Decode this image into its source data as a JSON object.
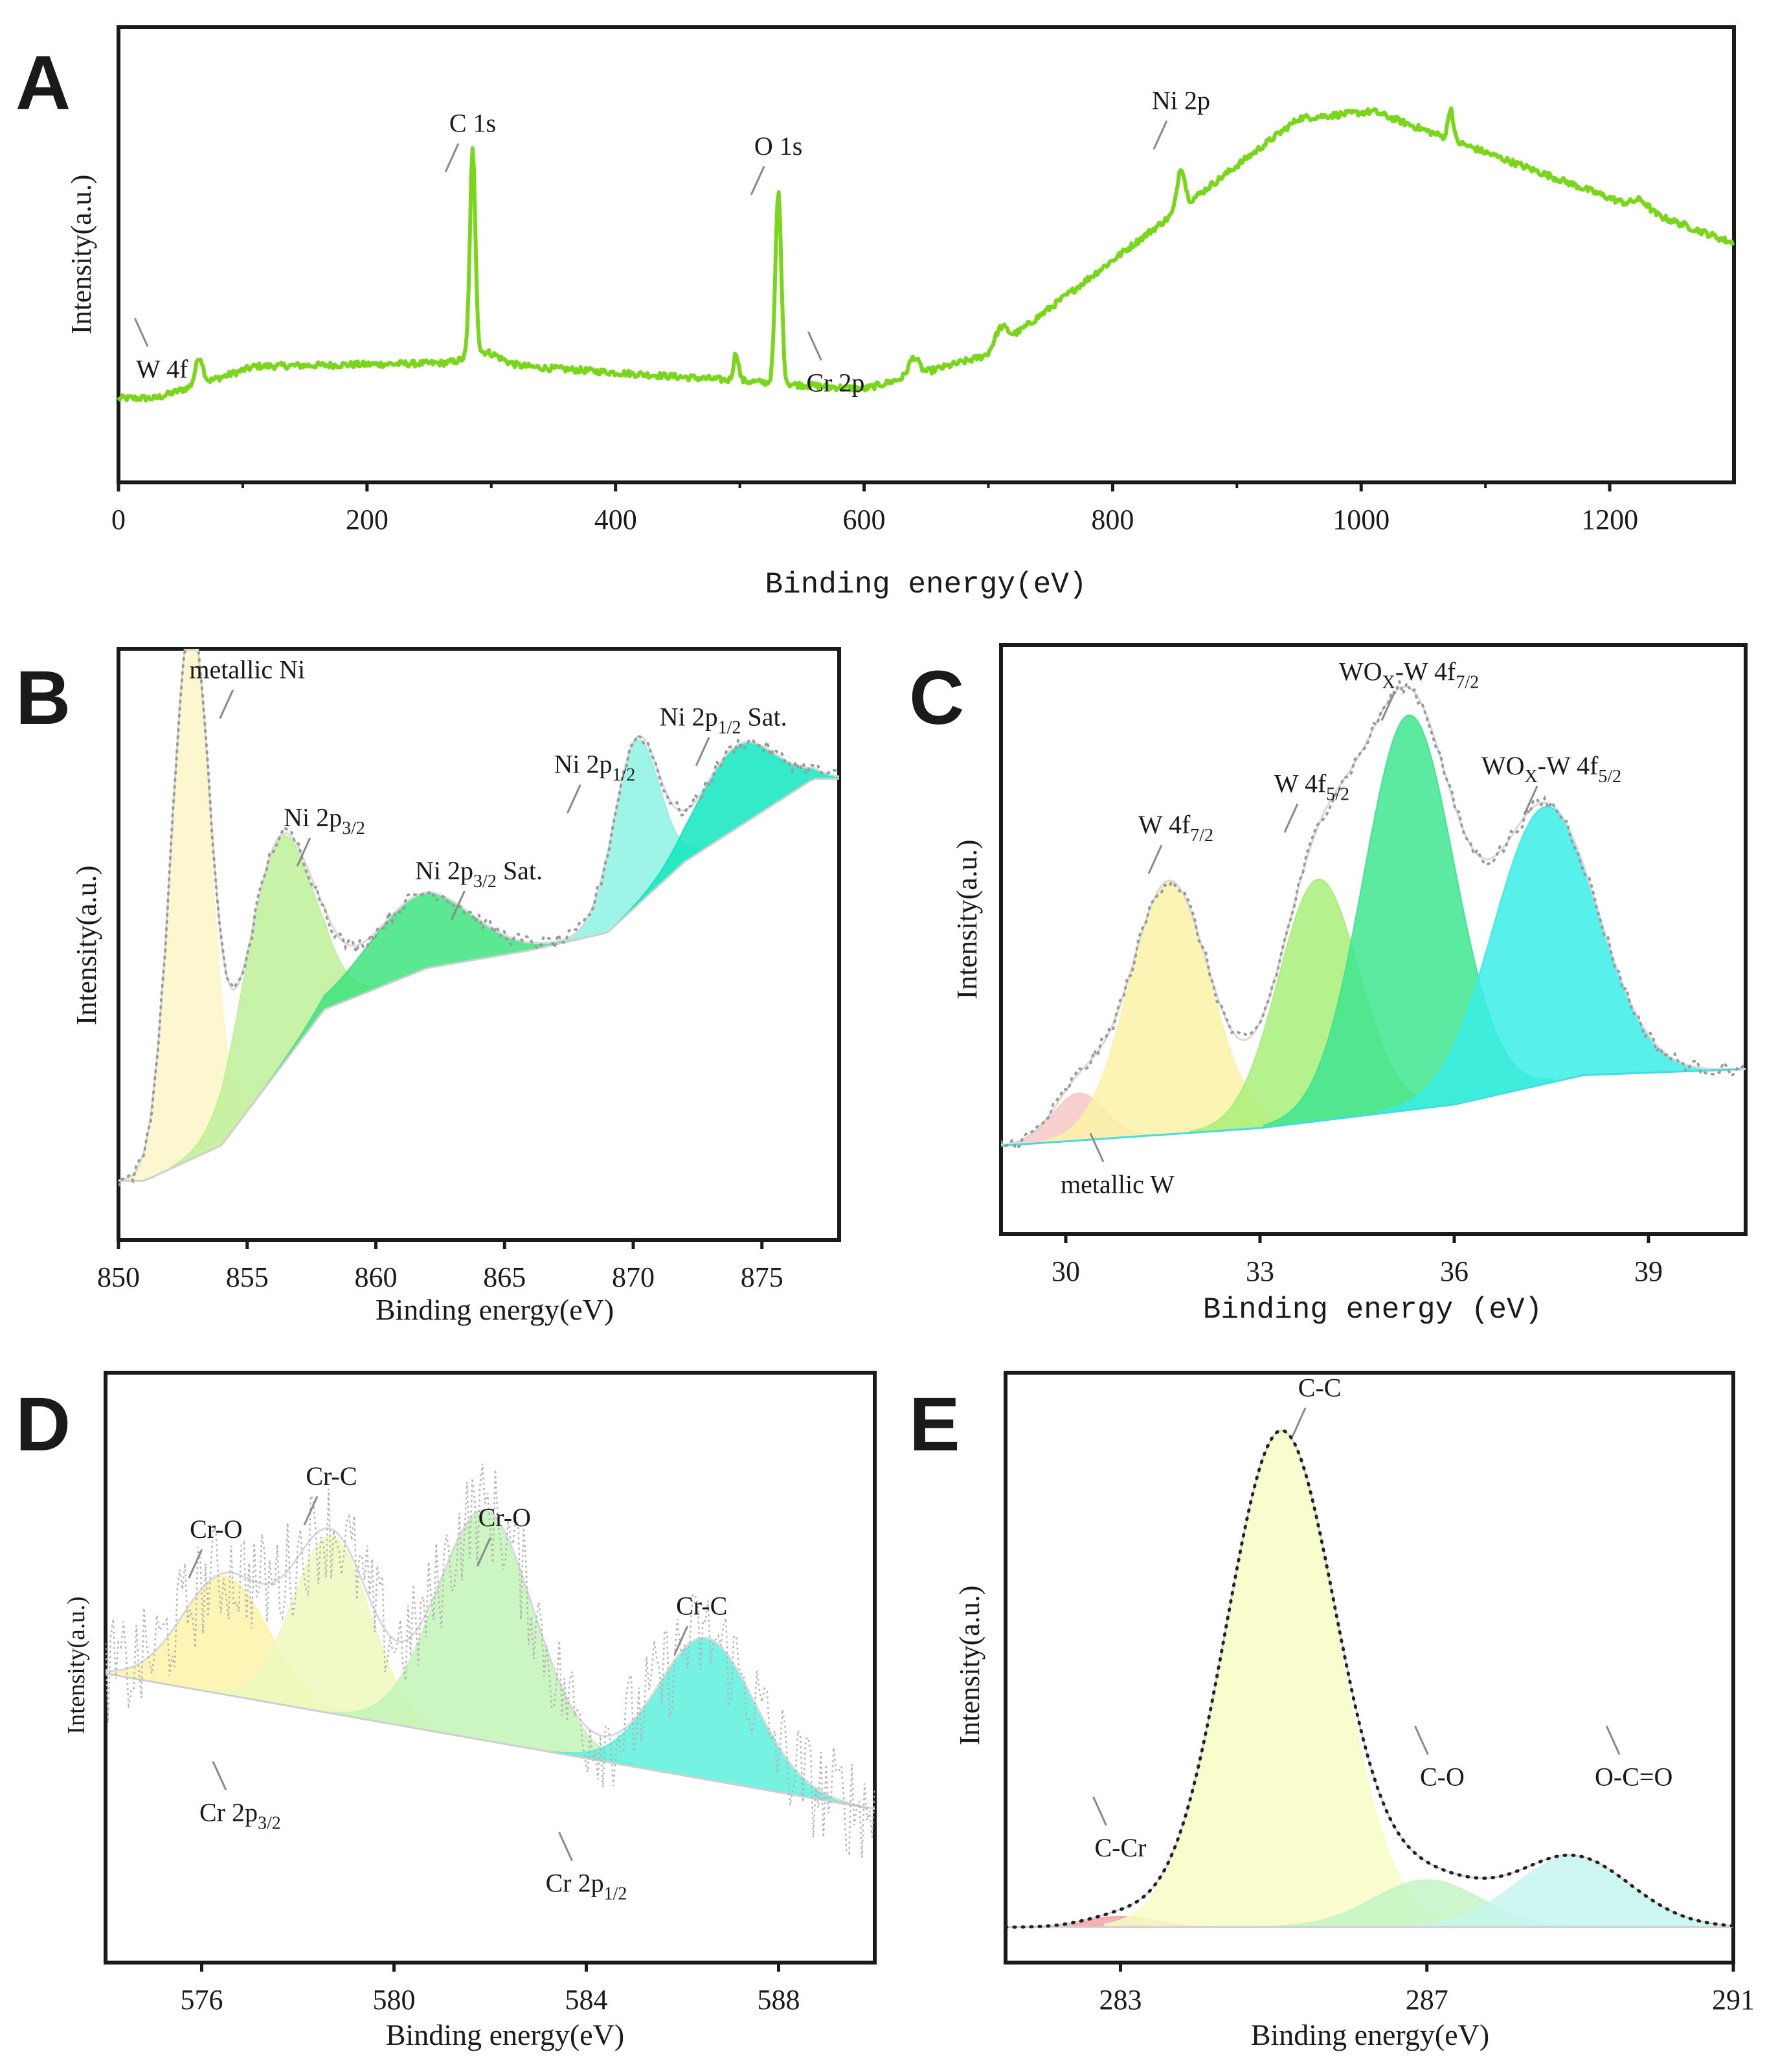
{
  "chart_data": [
    {
      "panel": "A",
      "type": "line",
      "xlabel": "Binding energy(eV)",
      "ylabel": "Intensity(a.u.)",
      "xlim": [
        0,
        1300
      ],
      "ylim": [
        0,
        100
      ],
      "xticks": [
        0,
        200,
        400,
        600,
        800,
        1000,
        1200
      ],
      "line_color": "#7ad61a",
      "annotations": [
        {
          "text": "W 4f",
          "x": 35,
          "y": 23
        },
        {
          "text": "C 1s",
          "x": 285,
          "y": 77
        },
        {
          "text": "Cr 2p",
          "x": 577,
          "y": 20
        },
        {
          "text": "O 1s",
          "x": 531,
          "y": 72
        },
        {
          "text": "Ni 2p",
          "x": 855,
          "y": 82
        }
      ]
    },
    {
      "panel": "B",
      "type": "area",
      "xlabel": "Binding energy(eV)",
      "ylabel": "Intensity(a.u.)",
      "xlim": [
        850,
        878
      ],
      "ylim": [
        0,
        100
      ],
      "xticks": [
        850,
        855,
        860,
        865,
        870,
        875
      ],
      "baseline": [
        [
          851,
          10
        ],
        [
          854,
          16
        ],
        [
          858,
          39
        ],
        [
          862,
          46
        ],
        [
          866,
          49
        ],
        [
          869,
          52
        ],
        [
          872,
          64
        ],
        [
          877,
          78
        ]
      ],
      "peaks": [
        {
          "name": "metallic Ni",
          "center": 852.8,
          "height": 90,
          "width": 0.75,
          "color": "#fbf6c5"
        },
        {
          "name": "Ni 2p3/2",
          "center": 856.2,
          "height": 39,
          "width": 1.3,
          "color": "#bff09a"
        },
        {
          "name": "Ni 2p3/2 Sat.",
          "center": 861.7,
          "height": 13,
          "width": 2.0,
          "color": "#3fe37f"
        },
        {
          "name": "Ni 2p1/2",
          "center": 870.1,
          "height": 28,
          "width": 0.9,
          "color": "#8df2e2"
        },
        {
          "name": "Ni 2p1/2 Sat.",
          "center": 874.0,
          "height": 14,
          "width": 1.5,
          "color": "#10e6c0"
        }
      ],
      "annotations": [
        {
          "text": "metallic Ni",
          "x": 855,
          "y": 95
        },
        {
          "text": "Ni 2p",
          "sub": "3/2",
          "x": 858,
          "y": 70
        },
        {
          "text": "Ni 2p",
          "sub": "3/2",
          "after": " Sat.",
          "x": 864,
          "y": 61
        },
        {
          "text": "Ni 2p",
          "sub": "1/2",
          "x": 868.5,
          "y": 79
        },
        {
          "text": "Ni 2p",
          "sub": "1/2",
          "after": " Sat.",
          "x": 873.5,
          "y": 87
        }
      ]
    },
    {
      "panel": "C",
      "type": "area",
      "xlabel": "Binding energy (eV)",
      "ylabel": "Intensity(a.u.)",
      "xlim": [
        29,
        40.5
      ],
      "ylim": [
        0,
        100
      ],
      "xticks": [
        30,
        33,
        36,
        39
      ],
      "baseline": [
        [
          29,
          15
        ],
        [
          33,
          18
        ],
        [
          36,
          22
        ],
        [
          38,
          27
        ],
        [
          40.5,
          28
        ]
      ],
      "peaks": [
        {
          "name": "metallic W",
          "center": 30.2,
          "height": 8,
          "width": 0.4,
          "color": "#f7c8c8"
        },
        {
          "name": "W 4f7/2",
          "center": 31.6,
          "height": 43,
          "width": 0.62,
          "color": "#fbf2a8"
        },
        {
          "name": "W 4f5/2",
          "center": 33.9,
          "height": 41,
          "width": 0.62,
          "color": "#a8ee78"
        },
        {
          "name": "WOx-W 4f7/2",
          "center": 35.3,
          "height": 67,
          "width": 0.7,
          "color": "#3fe58f"
        },
        {
          "name": "WOx-W 4f5/2",
          "center": 37.4,
          "height": 47,
          "width": 0.8,
          "color": "#39ede6"
        }
      ],
      "annotations": [
        {
          "text": "metallic W",
          "x": 30.8,
          "y": 7
        },
        {
          "text": "W 4f",
          "sub": "7/2",
          "x": 31.7,
          "y": 68
        },
        {
          "text": "W 4f",
          "sub": "5/2",
          "x": 33.8,
          "y": 75
        },
        {
          "text": "WO",
          "sub": "X",
          "after": "-W 4f",
          "sub2": "7/2",
          "x": 35.3,
          "y": 94
        },
        {
          "text": "WO",
          "sub": "X",
          "after": "-W 4f",
          "sub2": "5/2",
          "x": 37.5,
          "y": 78
        }
      ]
    },
    {
      "panel": "D",
      "type": "area",
      "xlabel": "Binding energy(eV)",
      "ylabel": "Intensity(a.u.)",
      "xlim": [
        574,
        590
      ],
      "ylim": [
        0,
        100
      ],
      "xticks": [
        576,
        580,
        584,
        588
      ],
      "baseline": [
        [
          574,
          49
        ],
        [
          590,
          26
        ]
      ],
      "peaks": [
        {
          "name": "Cr-O",
          "center": 576.5,
          "height": 20,
          "width": 0.9,
          "color": "#fbf3a8"
        },
        {
          "name": "Cr-C",
          "center": 578.7,
          "height": 30,
          "width": 0.8,
          "color": "#eef8bd"
        },
        {
          "name": "Cr-O",
          "center": 581.9,
          "height": 39,
          "width": 1.0,
          "color": "#c2f4b6"
        },
        {
          "name": "Cr-C",
          "center": 586.5,
          "height": 24,
          "width": 1.0,
          "color": "#5df0dc"
        }
      ],
      "annotations": [
        {
          "text": "Cr-O",
          "x": 576.3,
          "y": 72
        },
        {
          "text": "Cr-C",
          "x": 578.7,
          "y": 81
        },
        {
          "text": "Cr-O",
          "x": 582.3,
          "y": 74
        },
        {
          "text": "Cr-C",
          "x": 586.4,
          "y": 59
        },
        {
          "text": "Cr 2p",
          "sub": "3/2",
          "x": 576.8,
          "y": 24
        },
        {
          "text": "Cr 2p",
          "sub": "1/2",
          "x": 584.0,
          "y": 12
        }
      ]
    },
    {
      "panel": "E",
      "type": "area",
      "xlabel": "Binding energy(eV)",
      "ylabel": "Intensity(a.u.)",
      "xlim": [
        281.5,
        291
      ],
      "ylim": [
        0,
        100
      ],
      "xticks": [
        283,
        287,
        291
      ],
      "baseline": [
        [
          281.5,
          6
        ],
        [
          291,
          6
        ]
      ],
      "peaks": [
        {
          "name": "C-Cr",
          "center": 283.0,
          "height": 1.8,
          "width": 0.45,
          "color": "#f4a5a5"
        },
        {
          "name": "C-C",
          "center": 285.1,
          "height": 84,
          "width": 0.72,
          "color": "#f8fbc4"
        },
        {
          "name": "C-O",
          "center": 287.0,
          "height": 8,
          "width": 0.7,
          "color": "#c6f4c6"
        },
        {
          "name": "O-C=O",
          "center": 288.9,
          "height": 12,
          "width": 0.75,
          "color": "#c6f6ee"
        }
      ],
      "annotations": [
        {
          "text": "C-Cr",
          "x": 283.0,
          "y": 18
        },
        {
          "text": "C-C",
          "x": 285.6,
          "y": 96
        },
        {
          "text": "C-O",
          "x": 287.2,
          "y": 30
        },
        {
          "text": "O-C=O",
          "x": 289.7,
          "y": 30
        }
      ]
    }
  ]
}
